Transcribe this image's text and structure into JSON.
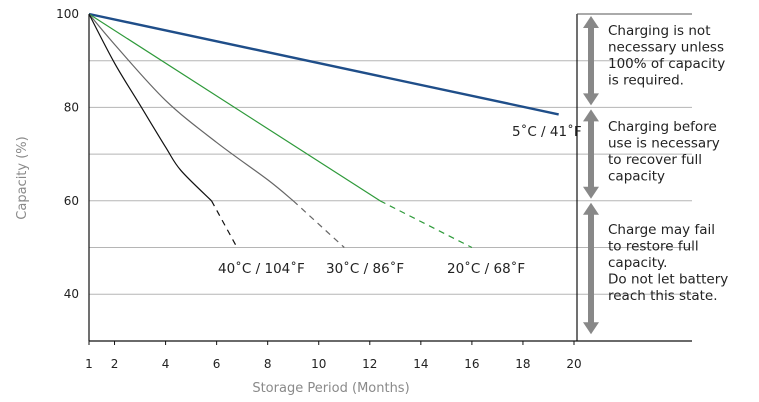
{
  "chart_data": {
    "type": "line",
    "xlabel": "Storage Period (Months)",
    "ylabel": "Capacity (%)",
    "xlim": [
      1,
      20
    ],
    "ylim": [
      31,
      103
    ],
    "x_ticks": [
      "1",
      "2",
      "4",
      "6",
      "8",
      "10",
      "12",
      "14",
      "16",
      "18",
      "20"
    ],
    "y_ticks": [
      "100",
      "80",
      "60",
      "40"
    ],
    "grid": "horizontal lines at 90, 80, 70, 60, 50, 40",
    "series": [
      {
        "name": "5˚C / 41˚F",
        "color": "#1f4e89",
        "style": "solid",
        "points": [
          [
            1,
            100
          ],
          [
            19.4,
            78.5
          ]
        ]
      },
      {
        "name": "20˚C / 68˚F",
        "color": "#2e9a3a",
        "style": "solid then dashed below 60%",
        "points": [
          [
            1,
            100
          ],
          [
            12.4,
            60
          ],
          [
            16,
            50
          ]
        ]
      },
      {
        "name": "30˚C / 86˚F",
        "color": "#666666",
        "style": "solid then dashed below 60%",
        "points": [
          [
            1,
            100
          ],
          [
            2,
            93.5
          ],
          [
            4,
            81.5
          ],
          [
            6,
            72.5
          ],
          [
            8,
            64.5
          ],
          [
            9,
            60
          ],
          [
            11,
            50
          ]
        ]
      },
      {
        "name": "40˚C / 104˚F",
        "color": "#111111",
        "style": "solid then dashed below 60%",
        "points": [
          [
            1,
            100
          ],
          [
            2,
            89.5
          ],
          [
            3,
            80.5
          ],
          [
            4,
            71.5
          ],
          [
            4.6,
            66.5
          ],
          [
            5.8,
            60
          ],
          [
            6.8,
            50
          ]
        ]
      }
    ],
    "zones": [
      {
        "range": [
          80,
          100
        ],
        "text": [
          "Charging is not",
          "necessary unless",
          "100% of capacity",
          "is required."
        ]
      },
      {
        "range": [
          60,
          80
        ],
        "text": [
          "Charging before",
          "use is necessary",
          "to recover full",
          "capacity"
        ]
      },
      {
        "range": [
          31,
          60
        ],
        "text": [
          "Charge may fail",
          "to restore full",
          "capacity.",
          "Do not let battery",
          "reach this state."
        ]
      }
    ],
    "arrow_color": "#888888"
  }
}
